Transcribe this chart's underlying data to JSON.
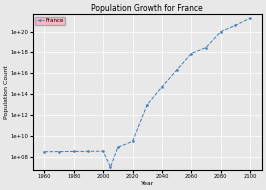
{
  "title": "Population Growth for France",
  "xlabel": "Year",
  "ylabel": "Population Count",
  "legend_label": "France",
  "line_color": "#3a7ebf",
  "marker_color": "#3a7ebf",
  "legend_facecolor": "#ffb6c1",
  "legend_edgecolor": "#aaaaaa",
  "years": [
    1960,
    1970,
    1980,
    1990,
    2000,
    2005,
    2010,
    2020,
    2030,
    2040,
    2050,
    2060,
    2070,
    2080,
    2090,
    2100
  ],
  "population": [
    300000000.0,
    310000000.0,
    320000000.0,
    330000000.0,
    340000000.0,
    10000000.0,
    800000000.0,
    3000000000.0,
    10000000000000.0,
    500000000000000.0,
    2e+16,
    8e+17,
    3e+18,
    1e+20,
    4e+20,
    2e+21
  ],
  "xlim": [
    1952,
    2108
  ],
  "ylim_log": [
    5000000.0,
    5e+21
  ],
  "background_color": "#e8e8e8",
  "grid_color": "white",
  "title_fontsize": 5.5,
  "label_fontsize": 4.5,
  "tick_fontsize": 3.8,
  "legend_fontsize": 4.0,
  "linewidth": 0.7,
  "markersize": 1.5,
  "xticks": [
    1960,
    1980,
    2000,
    2020,
    2040,
    2060,
    2080,
    2100
  ]
}
